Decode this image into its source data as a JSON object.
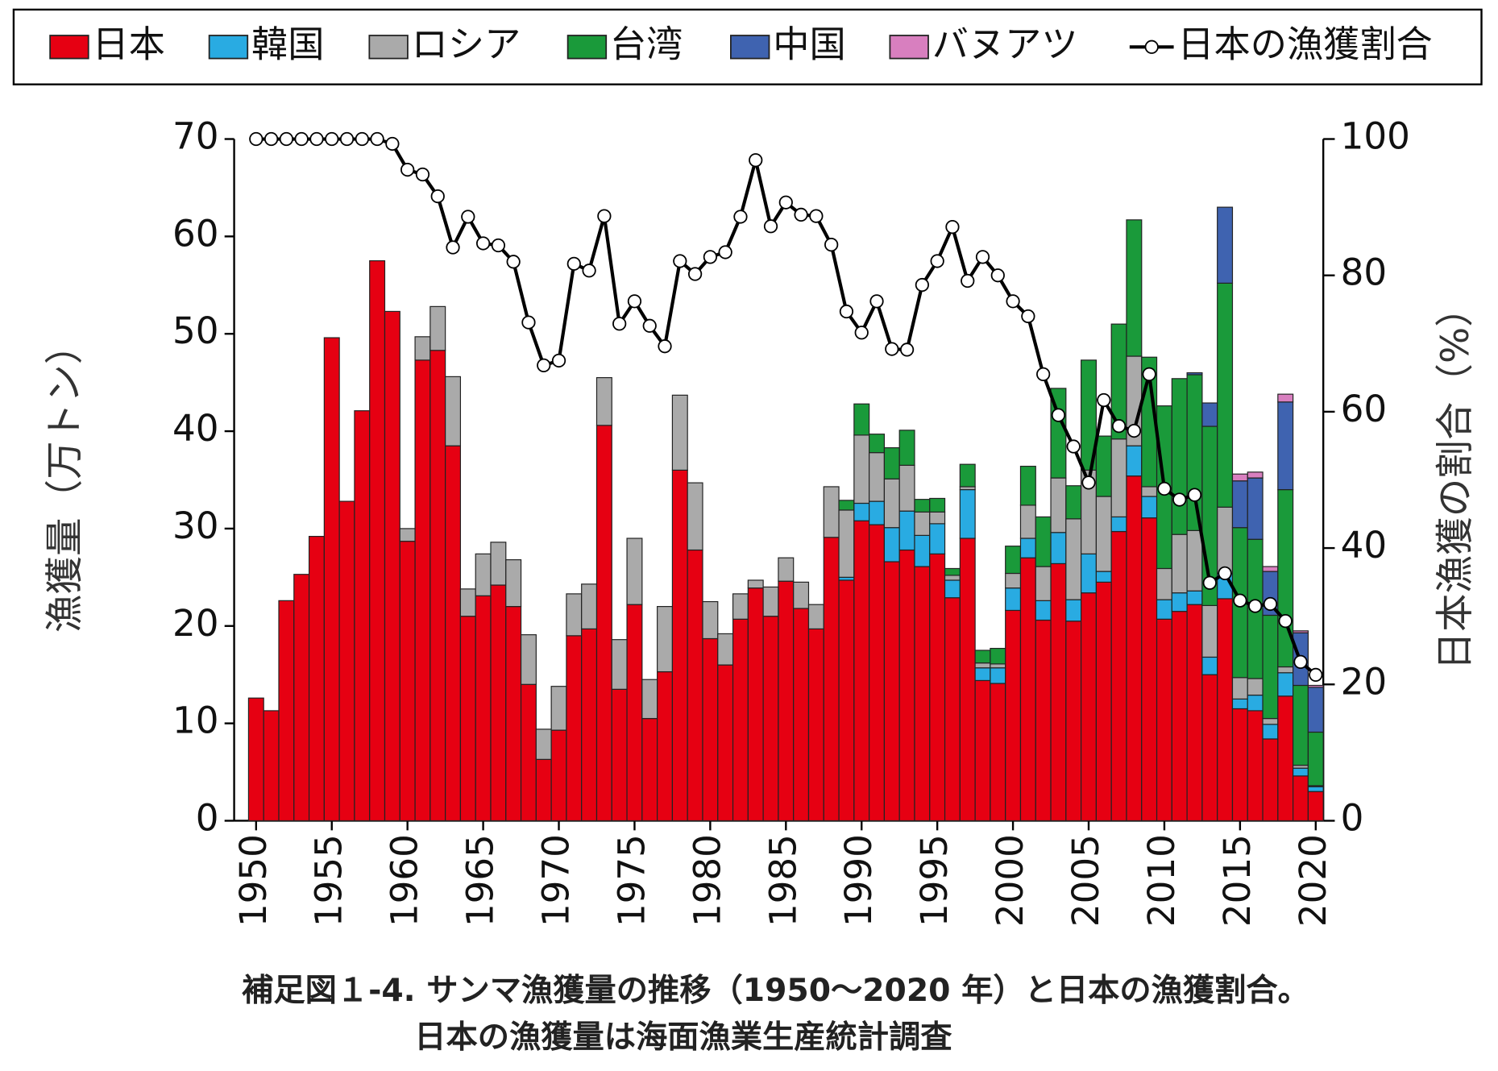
{
  "chart_data": {
    "type": "bar",
    "stacked": true,
    "caption": [
      "補足図１-4.  サンマ漁獲量の推移（1950～2020 年）と日本の漁獲割合。",
      "日本の漁獲量は海面漁業生産統計調査"
    ],
    "ylabel": "漁獲量（万トン）",
    "y2label": "日本漁獲の割合（%）",
    "x": [
      1950,
      1951,
      1952,
      1953,
      1954,
      1955,
      1956,
      1957,
      1958,
      1959,
      1960,
      1961,
      1962,
      1963,
      1964,
      1965,
      1966,
      1967,
      1968,
      1969,
      1970,
      1971,
      1972,
      1973,
      1974,
      1975,
      1976,
      1977,
      1978,
      1979,
      1980,
      1981,
      1982,
      1983,
      1984,
      1985,
      1986,
      1987,
      1988,
      1989,
      1990,
      1991,
      1992,
      1993,
      1994,
      1995,
      1996,
      1997,
      1998,
      1999,
      2000,
      2001,
      2002,
      2003,
      2004,
      2005,
      2006,
      2007,
      2008,
      2009,
      2010,
      2011,
      2012,
      2013,
      2014,
      2015,
      2016,
      2017,
      2018,
      2019,
      2020
    ],
    "xlim": [
      1949.5,
      2020.5
    ],
    "xticks": [
      1950,
      1955,
      1960,
      1965,
      1970,
      1975,
      1980,
      1985,
      1990,
      1995,
      2000,
      2005,
      2010,
      2015,
      2020
    ],
    "ylim": [
      0,
      70
    ],
    "yticks": [
      0,
      10,
      20,
      30,
      40,
      50,
      60,
      70
    ],
    "y2lim": [
      0,
      100
    ],
    "y2ticks": [
      0,
      20,
      40,
      60,
      80,
      100
    ],
    "series": [
      {
        "name": "日本",
        "type": "bar",
        "color": "#e60012",
        "values": [
          12.6,
          11.3,
          22.6,
          25.3,
          29.2,
          49.6,
          32.8,
          42.1,
          57.5,
          52.3,
          28.7,
          47.3,
          48.3,
          38.5,
          21.0,
          23.1,
          24.2,
          22.0,
          14.0,
          6.3,
          9.3,
          19.0,
          19.7,
          40.6,
          13.5,
          22.2,
          10.5,
          15.3,
          36.0,
          27.8,
          18.7,
          16.0,
          20.7,
          23.9,
          21.0,
          24.6,
          21.8,
          19.7,
          29.1,
          24.7,
          30.8,
          30.4,
          26.6,
          27.8,
          26.1,
          27.4,
          22.9,
          29.0,
          14.4,
          14.1,
          21.6,
          27.0,
          20.6,
          26.4,
          20.5,
          23.4,
          24.5,
          29.7,
          35.4,
          31.1,
          20.7,
          21.5,
          22.2,
          15.0,
          22.8,
          11.5,
          11.3,
          8.4,
          12.8,
          4.6,
          3.0
        ]
      },
      {
        "name": "韓国",
        "type": "bar",
        "color": "#29abe2",
        "values": [
          0,
          0,
          0,
          0,
          0,
          0,
          0,
          0,
          0,
          0,
          0,
          0,
          0,
          0,
          0,
          0,
          0,
          0,
          0,
          0,
          0,
          0,
          0,
          0,
          0,
          0,
          0,
          0,
          0,
          0,
          0,
          0,
          0,
          0,
          0,
          0,
          0,
          0,
          0,
          0.3,
          1.8,
          2.4,
          3.5,
          4.0,
          3.2,
          3.1,
          1.8,
          5.0,
          1.3,
          1.6,
          2.3,
          2.0,
          2.0,
          3.2,
          2.2,
          4.0,
          1.1,
          1.5,
          3.1,
          2.2,
          2.0,
          1.9,
          1.4,
          1.8,
          2.6,
          1.0,
          1.6,
          1.5,
          2.4,
          0.8,
          0.5
        ]
      },
      {
        "name": "ロシア",
        "type": "bar",
        "color": "#aaaaaa",
        "values": [
          0,
          0,
          0,
          0,
          0,
          0,
          0,
          0,
          0,
          0,
          1.3,
          2.4,
          4.5,
          7.1,
          2.8,
          4.3,
          4.4,
          4.8,
          5.1,
          3.1,
          4.5,
          4.3,
          4.6,
          4.9,
          5.1,
          6.8,
          4.0,
          6.7,
          7.7,
          6.9,
          3.8,
          3.2,
          2.6,
          0.8,
          3.0,
          2.4,
          2.7,
          2.5,
          5.2,
          6.9,
          7.0,
          5.0,
          5.0,
          4.7,
          2.4,
          1.2,
          0.5,
          0.3,
          0.5,
          0.4,
          1.5,
          3.4,
          3.5,
          5.6,
          8.3,
          8.6,
          7.7,
          8.0,
          9.2,
          1.0,
          3.2,
          6.0,
          6.2,
          5.3,
          6.8,
          2.2,
          1.7,
          0.6,
          0.6,
          0.3,
          0.1
        ]
      },
      {
        "name": "台湾",
        "type": "bar",
        "color": "#1a9a3a",
        "values": [
          0,
          0,
          0,
          0,
          0,
          0,
          0,
          0,
          0,
          0,
          0,
          0,
          0,
          0,
          0,
          0,
          0,
          0,
          0,
          0,
          0,
          0,
          0,
          0,
          0,
          0,
          0,
          0,
          0,
          0,
          0,
          0,
          0,
          0,
          0,
          0,
          0,
          0,
          0,
          1.0,
          3.2,
          1.9,
          3.2,
          3.6,
          1.3,
          1.4,
          0.7,
          2.3,
          1.3,
          1.6,
          2.8,
          4.0,
          5.1,
          9.2,
          3.4,
          11.3,
          6.2,
          11.8,
          14.0,
          13.3,
          16.7,
          16.0,
          16.0,
          18.4,
          23.0,
          15.4,
          14.3,
          10.6,
          18.2,
          8.2,
          5.5
        ]
      },
      {
        "name": "中国",
        "type": "bar",
        "color": "#3f63b0",
        "values": [
          0,
          0,
          0,
          0,
          0,
          0,
          0,
          0,
          0,
          0,
          0,
          0,
          0,
          0,
          0,
          0,
          0,
          0,
          0,
          0,
          0,
          0,
          0,
          0,
          0,
          0,
          0,
          0,
          0,
          0,
          0,
          0,
          0,
          0,
          0,
          0,
          0,
          0,
          0,
          0,
          0,
          0,
          0,
          0,
          0,
          0,
          0,
          0,
          0,
          0,
          0,
          0,
          0,
          0,
          0,
          0,
          0,
          0,
          0,
          0,
          0,
          0,
          0.2,
          2.4,
          7.8,
          4.8,
          6.3,
          4.5,
          9.0,
          5.4,
          4.6
        ]
      },
      {
        "name": "バヌアツ",
        "type": "bar",
        "color": "#d87fbf",
        "values": [
          0,
          0,
          0,
          0,
          0,
          0,
          0,
          0,
          0,
          0,
          0,
          0,
          0,
          0,
          0,
          0,
          0,
          0,
          0,
          0,
          0,
          0,
          0,
          0,
          0,
          0,
          0,
          0,
          0,
          0,
          0,
          0,
          0,
          0,
          0,
          0,
          0,
          0,
          0,
          0,
          0,
          0,
          0,
          0,
          0,
          0,
          0,
          0,
          0,
          0,
          0,
          0,
          0,
          0,
          0,
          0,
          0,
          0,
          0,
          0,
          0,
          0,
          0,
          0,
          0,
          0.7,
          0.6,
          0.5,
          0.8,
          0.2,
          0.2
        ]
      },
      {
        "name": "日本の漁獲割合",
        "type": "line",
        "axis": "y2",
        "color": "#000000",
        "values": [
          100,
          100,
          100,
          100,
          100,
          100,
          100,
          100,
          100,
          99.3,
          95.5,
          94.8,
          91.6,
          84.1,
          88.6,
          84.7,
          84.4,
          82.0,
          73.1,
          66.8,
          67.5,
          81.7,
          80.7,
          88.7,
          72.9,
          76.2,
          72.6,
          69.6,
          82.1,
          80.2,
          82.7,
          83.4,
          88.6,
          96.9,
          87.2,
          90.7,
          88.9,
          88.7,
          84.5,
          74.7,
          71.6,
          76.2,
          69.2,
          69.1,
          78.6,
          82.1,
          87.1,
          79.2,
          82.7,
          80.0,
          76.2,
          74.0,
          65.5,
          59.5,
          54.9,
          49.6,
          61.7,
          57.9,
          57.2,
          65.5,
          48.7,
          47.1,
          47.8,
          34.9,
          36.3,
          32.3,
          31.5,
          31.8,
          29.3,
          23.3,
          21.4
        ]
      }
    ]
  }
}
